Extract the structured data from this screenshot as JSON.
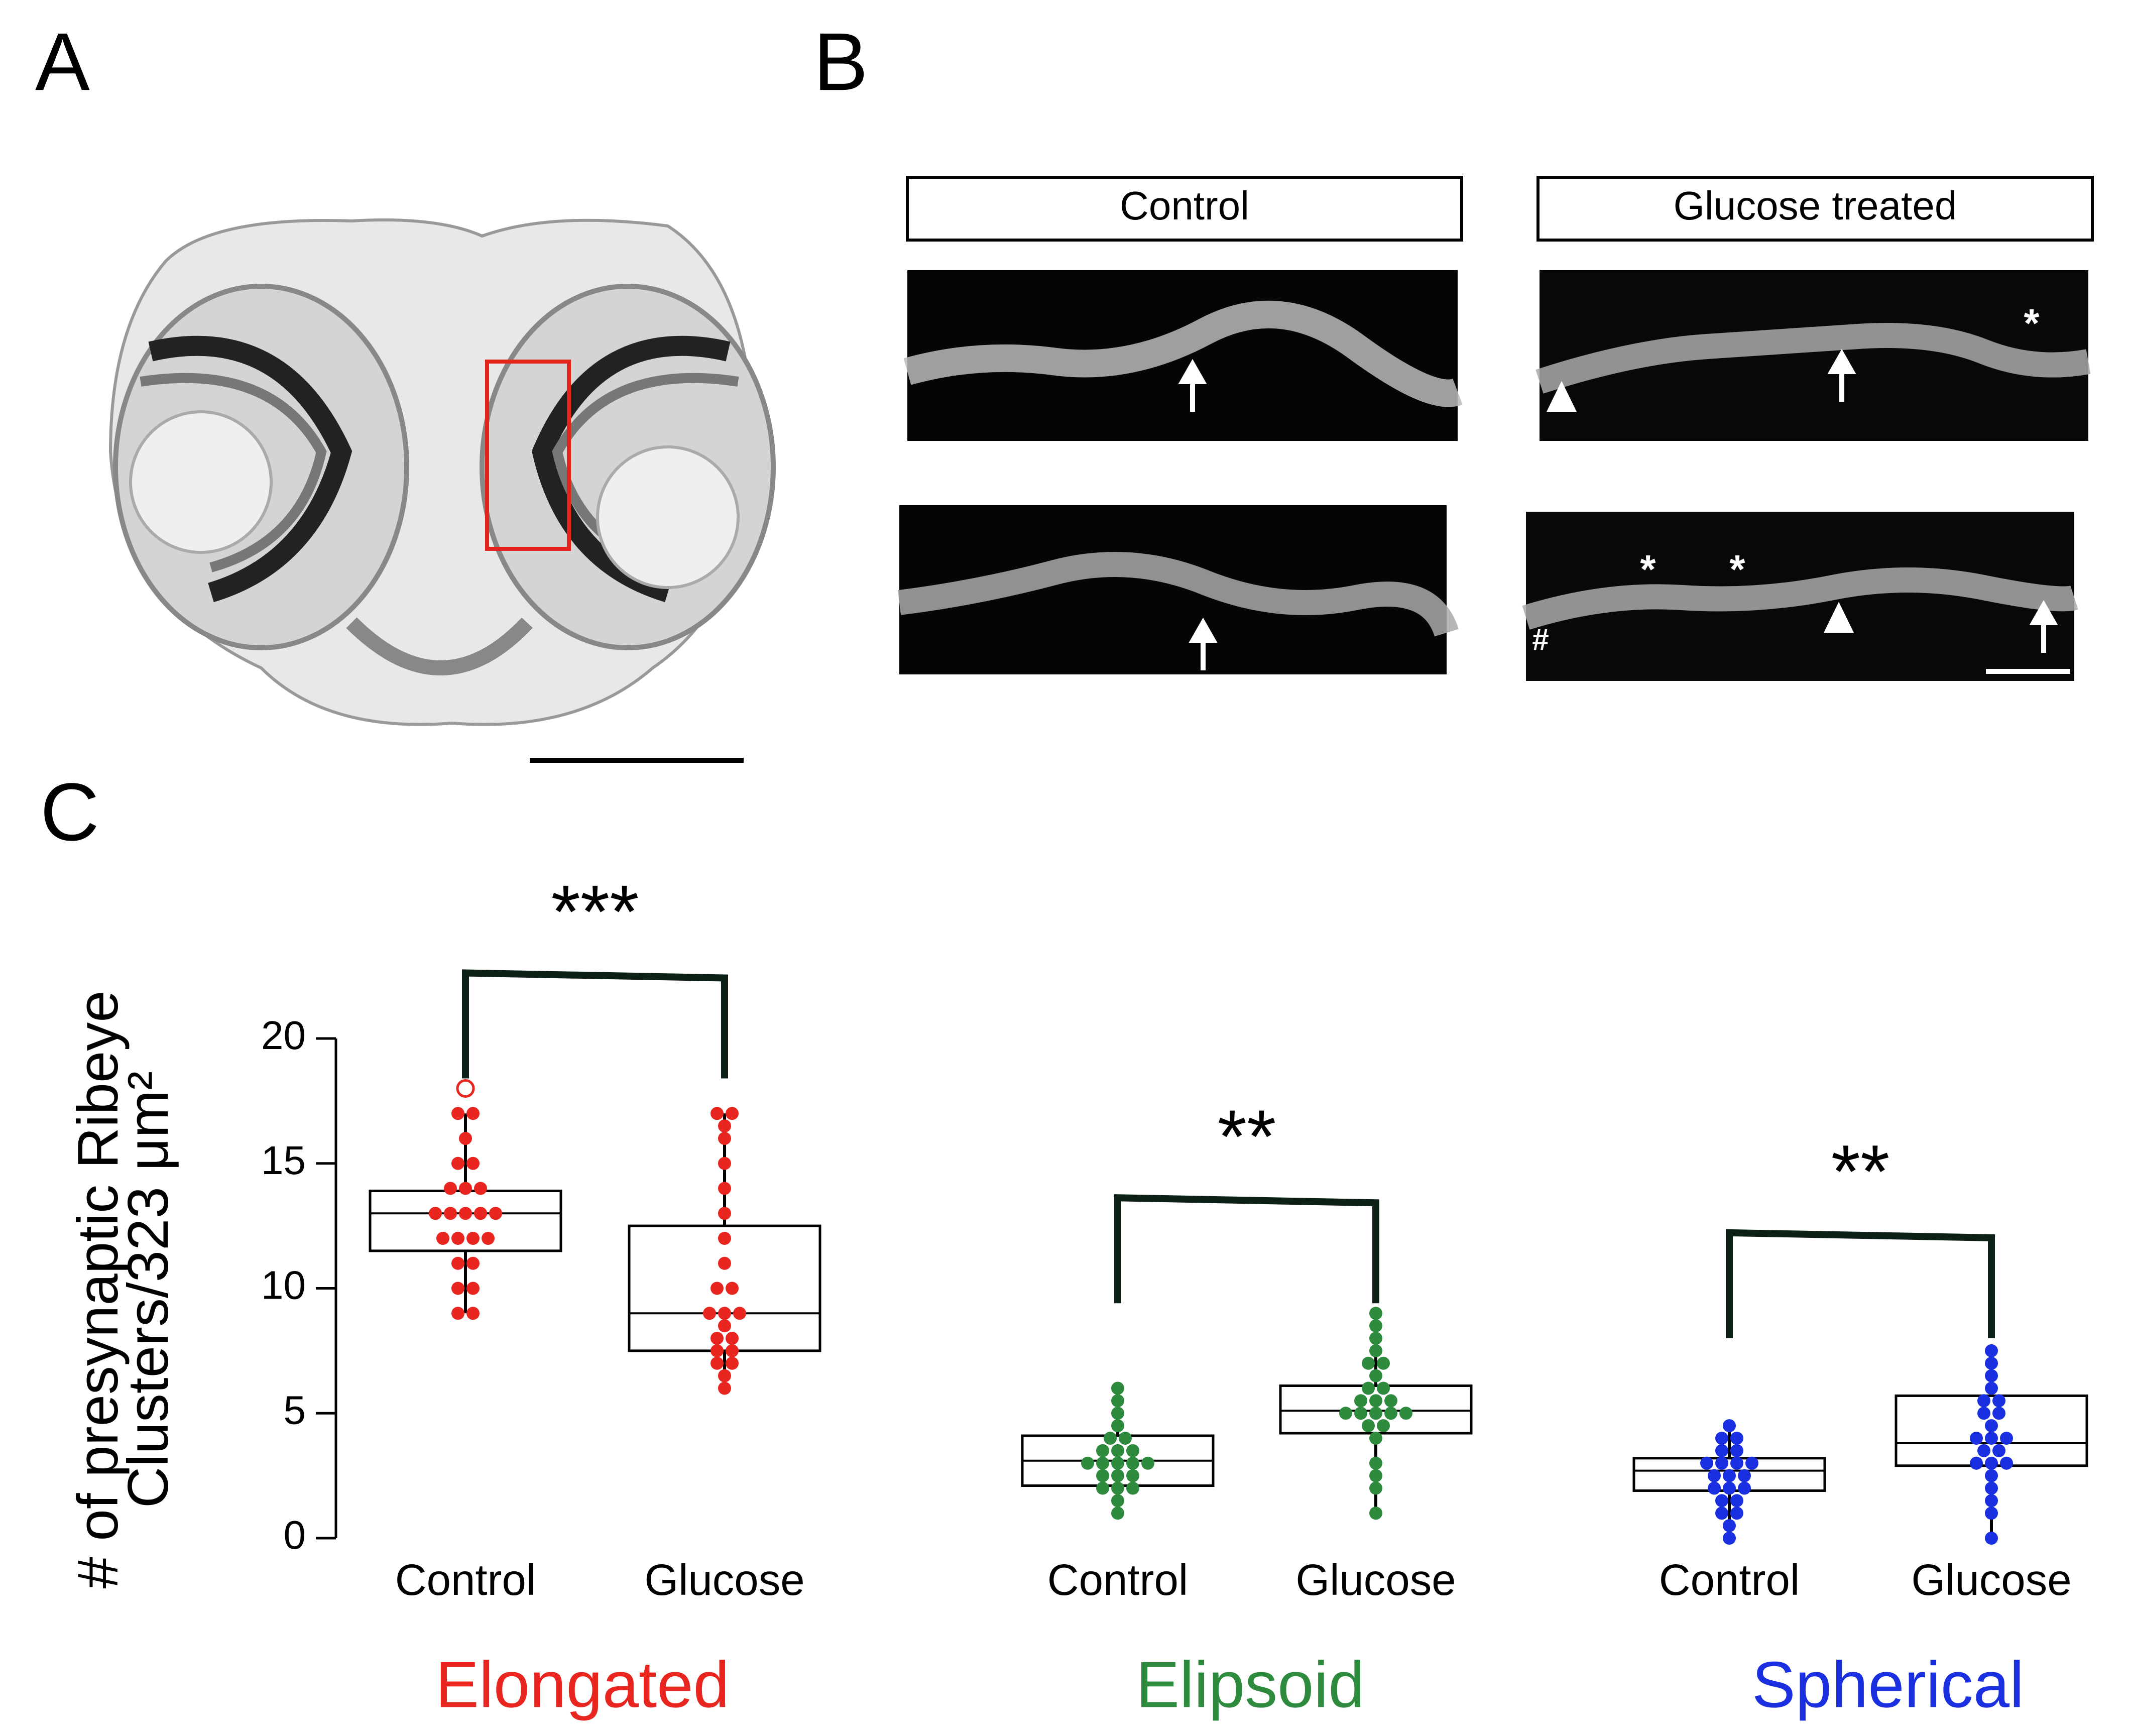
{
  "panels": {
    "a": "A",
    "b": "B",
    "c": "C"
  },
  "panel_b": {
    "control": "Control",
    "glucose": "Glucose treated",
    "asterisk": "*",
    "hash": "#"
  },
  "chart_data": {
    "type": "box",
    "ylabel": [
      "# of presynaptic Ribeye",
      "Clusters/323 μm²"
    ],
    "ylim": [
      0,
      20
    ],
    "yticks": [
      0,
      5,
      10,
      15,
      20
    ],
    "series": [
      {
        "name": "Elongated",
        "color": "#e8251f",
        "significance": "***",
        "categories": [
          "Control",
          "Glucose"
        ],
        "boxes": [
          {
            "min": 9,
            "q1": 11.5,
            "median": 13,
            "q3": 13.9,
            "max": 17,
            "outliers": [
              18
            ],
            "points": [
              9,
              9,
              10,
              10,
              11,
              11,
              12,
              12,
              12,
              12,
              13,
              13,
              13,
              13,
              13,
              14,
              14,
              14,
              15,
              15,
              16,
              17,
              17
            ]
          },
          {
            "min": 6,
            "q1": 7.5,
            "median": 9,
            "q3": 12.5,
            "max": 17,
            "outliers": [],
            "points": [
              6,
              6.5,
              7,
              7,
              7.5,
              7.5,
              8,
              8,
              8.5,
              9,
              9,
              9,
              10,
              10,
              11,
              12,
              13,
              14,
              15,
              16,
              16.5,
              17,
              17
            ]
          }
        ]
      },
      {
        "name": "Elipsoid",
        "color": "#2e8b3e",
        "significance": "**",
        "categories": [
          "Control",
          "Glucose"
        ],
        "boxes": [
          {
            "min": 1,
            "q1": 2.1,
            "median": 3.1,
            "q3": 4.1,
            "max": 6,
            "outliers": [],
            "points": [
              1,
              1.5,
              2,
              2,
              2,
              2.5,
              2.5,
              2.5,
              3,
              3,
              3,
              3,
              3,
              3.5,
              3.5,
              3.5,
              4,
              4,
              4.5,
              5,
              5.5,
              6
            ]
          },
          {
            "min": 1,
            "q1": 4.2,
            "median": 5.1,
            "q3": 6.1,
            "max": 9,
            "outliers": [],
            "points": [
              1,
              2,
              2.5,
              3,
              4,
              4.5,
              4.5,
              5,
              5,
              5,
              5,
              5,
              5.5,
              5.5,
              5.5,
              6,
              6,
              6.5,
              7,
              7,
              7.5,
              8,
              8.5,
              9
            ]
          }
        ]
      },
      {
        "name": "Spherical",
        "color": "#1a2fe0",
        "significance": "**",
        "categories": [
          "Control",
          "Glucose"
        ],
        "boxes": [
          {
            "min": 0,
            "q1": 1.9,
            "median": 2.7,
            "q3": 3.2,
            "max": 4.7,
            "outliers": [],
            "points": [
              0,
              0.5,
              1,
              1,
              1.5,
              1.5,
              2,
              2,
              2,
              2.5,
              2.5,
              2.5,
              3,
              3,
              3,
              3,
              3.5,
              3.5,
              4,
              4,
              4.5
            ]
          },
          {
            "min": 0,
            "q1": 2.9,
            "median": 3.8,
            "q3": 5.7,
            "max": 7.6,
            "outliers": [],
            "points": [
              0,
              1,
              1.5,
              2,
              2.5,
              3,
              3,
              3,
              3.5,
              3.5,
              4,
              4,
              4,
              4.5,
              5,
              5,
              5.5,
              5.5,
              6,
              6.5,
              7,
              7.5
            ]
          }
        ]
      }
    ]
  }
}
